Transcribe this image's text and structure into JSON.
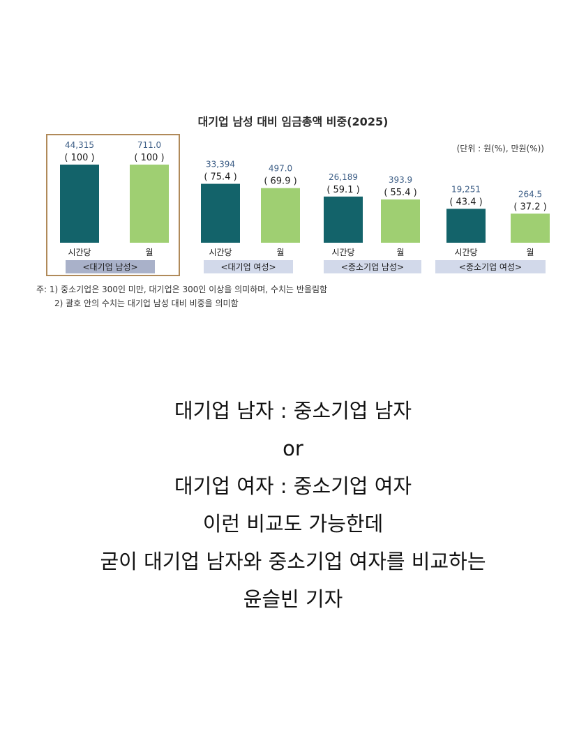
{
  "chart_data": {
    "type": "bar",
    "title": "대기업 남성 대비 임금총액 비중(2025)",
    "unit_label": "(단위 : 원(%), 만원(%))",
    "groups": [
      {
        "label": "<대기업 남성>",
        "highlighted": true,
        "bars": [
          {
            "category": "시간당",
            "value": 44315,
            "value_label": "44,315",
            "ratio": 100,
            "ratio_label": "( 100 )"
          },
          {
            "category": "월",
            "value": 711.0,
            "value_label": "711.0",
            "ratio": 100,
            "ratio_label": "( 100 )"
          }
        ]
      },
      {
        "label": "<대기업 여성>",
        "highlighted": false,
        "bars": [
          {
            "category": "시간당",
            "value": 33394,
            "value_label": "33,394",
            "ratio": 75.4,
            "ratio_label": "( 75.4 )"
          },
          {
            "category": "월",
            "value": 497.0,
            "value_label": "497.0",
            "ratio": 69.9,
            "ratio_label": "( 69.9 )"
          }
        ]
      },
      {
        "label": "<중소기업 남성>",
        "highlighted": false,
        "bars": [
          {
            "category": "시간당",
            "value": 26189,
            "value_label": "26,189",
            "ratio": 59.1,
            "ratio_label": "( 59.1 )"
          },
          {
            "category": "월",
            "value": 393.9,
            "value_label": "393.9",
            "ratio": 55.4,
            "ratio_label": "( 55.4 )"
          }
        ]
      },
      {
        "label": "<중소기업 여성>",
        "highlighted": false,
        "bars": [
          {
            "category": "시간당",
            "value": 19251,
            "value_label": "19,251",
            "ratio": 43.4,
            "ratio_label": "( 43.4 )"
          },
          {
            "category": "월",
            "value": 264.5,
            "value_label": "264.5",
            "ratio": 37.2,
            "ratio_label": "( 37.2 )"
          }
        ]
      }
    ],
    "notes": [
      "주: 1) 중소기업은 300인 미만, 대기업은 300인 이상을 의미하며, 수치는 반올림함",
      "2) 괄호 안의 수치는 대기업 남성 대비 비중을 의미함"
    ],
    "colors": {
      "hourly": "#13636a",
      "monthly": "#9fcf72",
      "highlight_border": "#b08a5a",
      "group_label_bg_first": "#a9b1c9",
      "group_label_bg": "#d2d9ea",
      "value_text": "#3d5e86"
    }
  },
  "caption": {
    "lines": [
      "대기업 남자 : 중소기업 남자",
      "or",
      "대기업 여자 : 중소기업 여자",
      "이런 비교도 가능한데",
      "굳이 대기업 남자와 중소기업 여자를 비교하는",
      "윤슬빈 기자"
    ]
  }
}
